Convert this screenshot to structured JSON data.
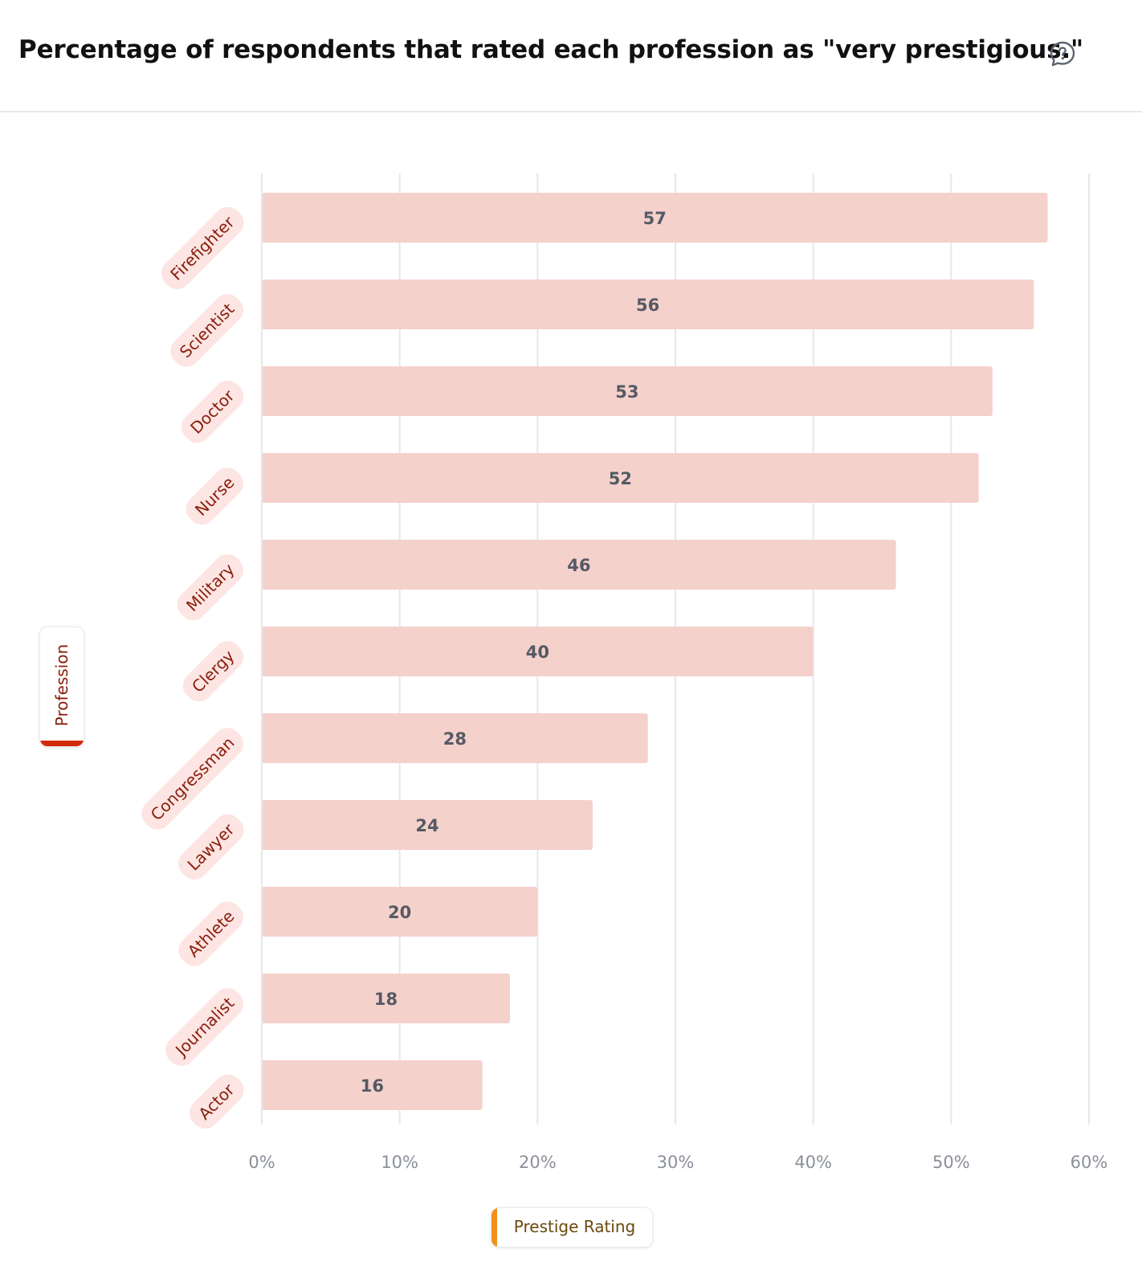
{
  "header": {
    "title": "Percentage of respondents that rated each profession as \"very prestigious.\"",
    "help_icon": "question-bubble-icon"
  },
  "chart_data": {
    "type": "bar",
    "orientation": "horizontal",
    "categories": [
      "Firefighter",
      "Scientist",
      "Doctor",
      "Nurse",
      "Military",
      "Clergy",
      "Congressman",
      "Lawyer",
      "Athlete",
      "Journalist",
      "Actor"
    ],
    "values": [
      57,
      56,
      53,
      52,
      46,
      40,
      28,
      24,
      20,
      18,
      16
    ],
    "data_labels": [
      "57",
      "56",
      "53",
      "52",
      "46",
      "40",
      "28",
      "24",
      "20",
      "18",
      "16"
    ],
    "title": "Percentage of respondents that rated each profession as \"very prestigious.\"",
    "xlabel": "Prestige Rating",
    "ylabel": "Profession",
    "xlim": [
      0,
      60
    ],
    "x_ticks": [
      0,
      10,
      20,
      30,
      40,
      50,
      60
    ],
    "x_tick_labels": [
      "0%",
      "10%",
      "20%",
      "30%",
      "40%",
      "50%",
      "60%"
    ],
    "grid": true,
    "legend": "none"
  },
  "colors": {
    "bar_fill": "#f5d1cc",
    "grid": "#e7e7ea",
    "category_label_bg": "#fce5e2",
    "category_label_text": "#8a1d0c",
    "value_label_text": "#555a64",
    "tick_label_text": "#8b8f99",
    "ylabel_accent": "#d32a0e",
    "xlabel_accent": "#f39019",
    "xlabel_text": "#6b4a0c"
  }
}
